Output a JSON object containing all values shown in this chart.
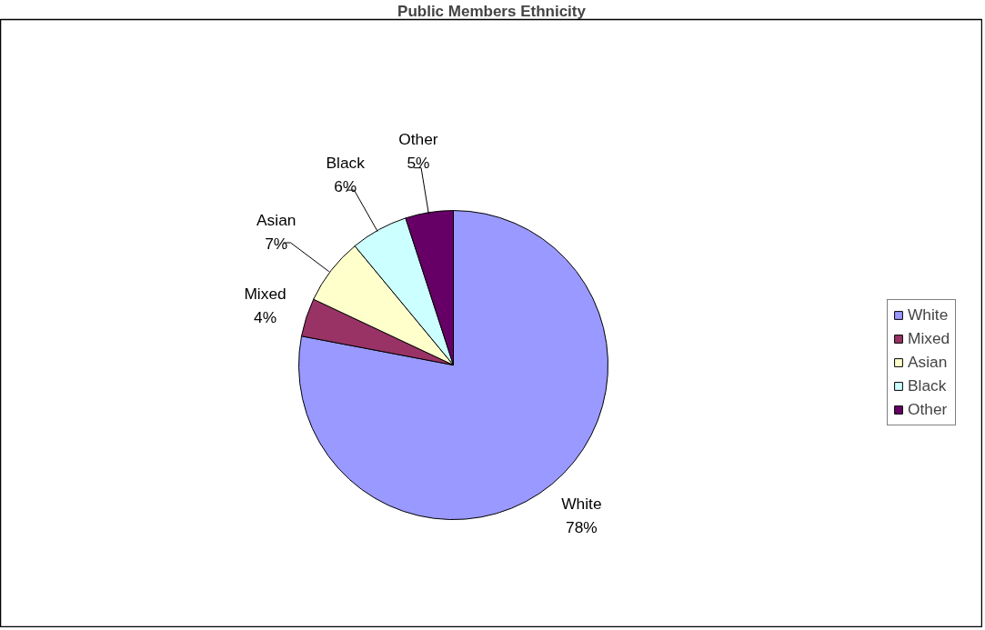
{
  "chart_data": {
    "type": "pie",
    "title": "Public Members Ethnicity",
    "categories": [
      "White",
      "Mixed",
      "Asian",
      "Black",
      "Other"
    ],
    "values": [
      78,
      4,
      7,
      6,
      5
    ],
    "colors": [
      "#9999ff",
      "#993366",
      "#ffffcc",
      "#ccffff",
      "#660066"
    ],
    "value_labels": [
      "78%",
      "4%",
      "7%",
      "6%",
      "5%"
    ],
    "legend": "right"
  }
}
